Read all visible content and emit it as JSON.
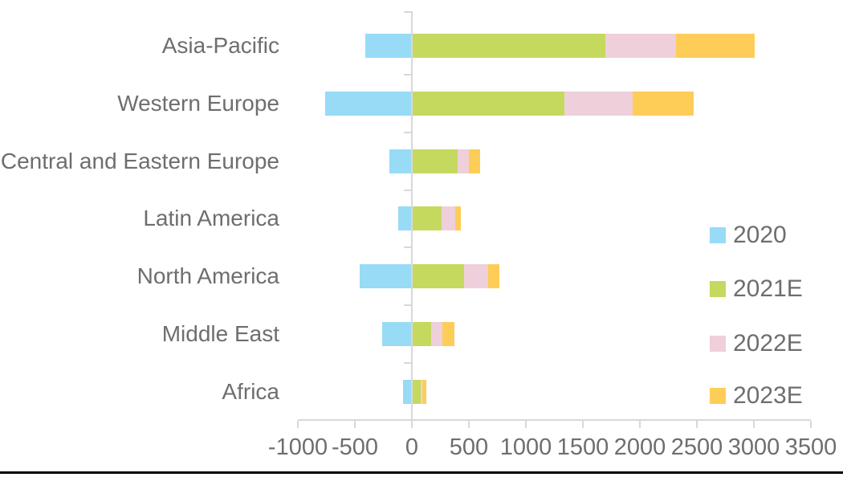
{
  "chart_data": {
    "type": "bar",
    "orientation": "horizontal",
    "stacked": true,
    "title": "",
    "xlabel": "",
    "ylabel": "",
    "grid": false,
    "legend_position": "right",
    "xlim": [
      -1000,
      3500
    ],
    "x_ticks": [
      -1000,
      -500,
      0,
      500,
      1000,
      1500,
      2000,
      2500,
      3000,
      3500
    ],
    "categories": [
      "Asia-Pacific",
      "Western Europe",
      "Central and Eastern Europe",
      "Latin America",
      "North America",
      "Middle East",
      "Africa"
    ],
    "series": [
      {
        "name": "2020",
        "color": "#97dbf6",
        "values": [
          -410,
          -760,
          -200,
          -120,
          -460,
          -260,
          -75
        ]
      },
      {
        "name": "2021E",
        "color": "#c5d95f",
        "values": [
          1700,
          1340,
          400,
          260,
          460,
          170,
          75
        ]
      },
      {
        "name": "2022E",
        "color": "#efcfda",
        "values": [
          620,
          600,
          100,
          120,
          210,
          100,
          20
        ]
      },
      {
        "name": "2023E",
        "color": "#fdcd58",
        "values": [
          690,
          530,
          100,
          50,
          100,
          100,
          30
        ]
      }
    ],
    "legend_labels": [
      "2020",
      "2021E",
      "2022E",
      "2023E"
    ]
  },
  "colors": {
    "axis": "#d8d8d8",
    "text": "#6e6e6e",
    "background": "#ffffff",
    "bottom_rule": "#000000"
  }
}
